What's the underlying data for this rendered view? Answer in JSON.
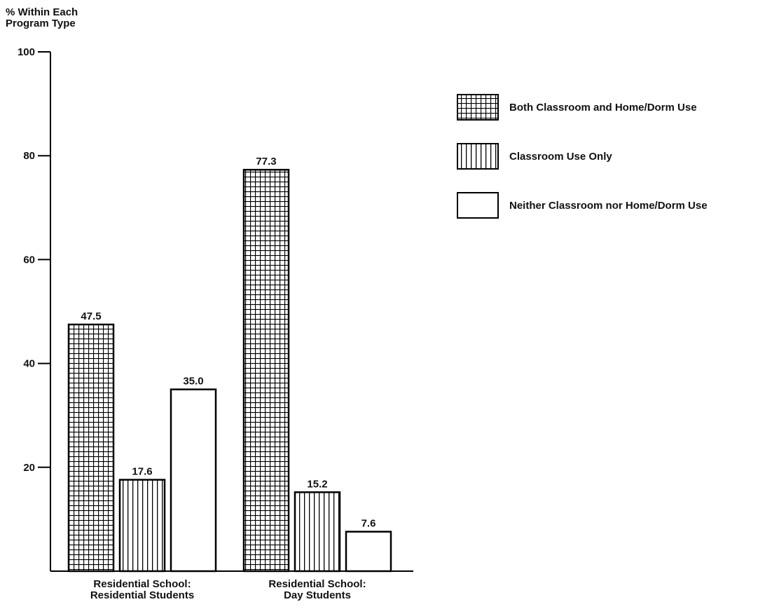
{
  "chart_data": {
    "type": "bar",
    "y_label": "% Within Each\nProgram Type",
    "categories": [
      "Residential School:\nResidential Students",
      "Residential School:\nDay Students"
    ],
    "series": [
      {
        "name": "Both Classroom and Home/Dorm Use",
        "color": "#000000",
        "pattern": "grid",
        "values": [
          47.5,
          77.3
        ],
        "value_labels": [
          "47.5",
          "77.3"
        ]
      },
      {
        "name": "Classroom Use Only",
        "color": "#000000",
        "pattern": "vertical",
        "values": [
          17.6,
          15.2
        ],
        "value_labels": [
          "17.6",
          "15.2"
        ]
      },
      {
        "name": "Neither Classroom nor Home/Dorm Use",
        "color": "#000000",
        "pattern": "none",
        "values": [
          35.0,
          7.6
        ],
        "value_labels": [
          "35.0",
          "7.6"
        ]
      }
    ],
    "ylim": [
      0,
      100
    ],
    "yticks": [
      20,
      40,
      60,
      80,
      100
    ],
    "grid": false
  }
}
